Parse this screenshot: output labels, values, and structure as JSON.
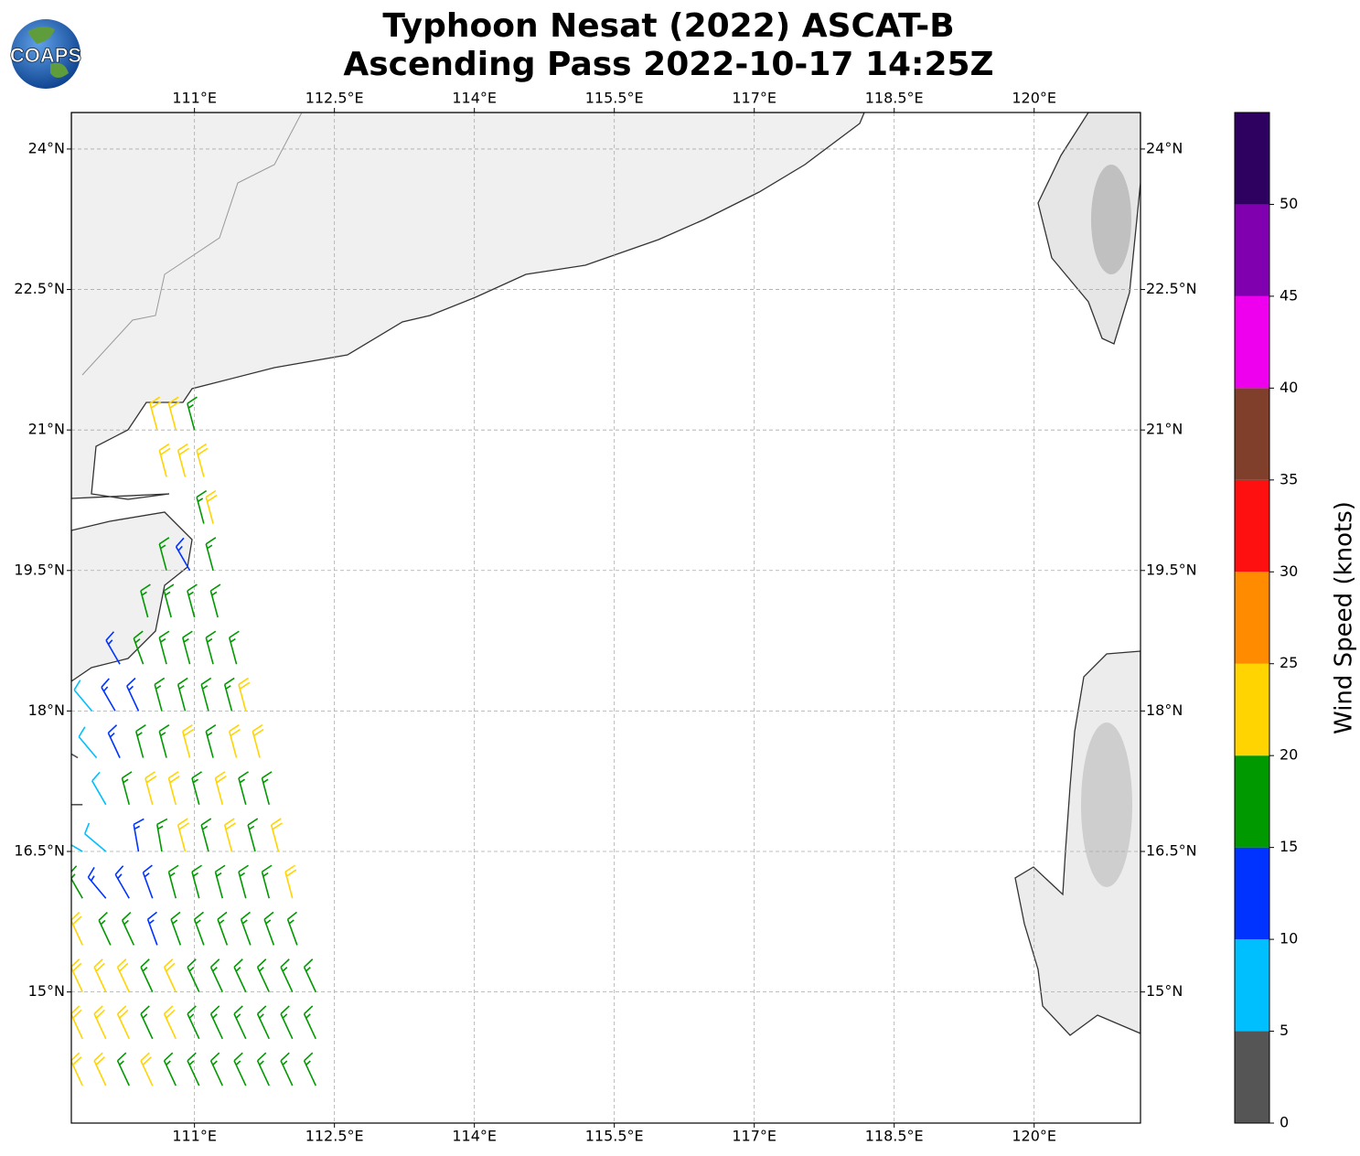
{
  "map": {
    "type": "wind-barbs",
    "logo": "COAPS",
    "title": "Typhoon Nesat (2022) ASCAT-B",
    "subtitle": "Ascending Pass 2022-10-17 14:25Z",
    "xlim": [
      109.68,
      121.14
    ],
    "ylim": [
      13.6,
      24.39
    ],
    "xticks": [
      {
        "value": 111,
        "label": "111°E"
      },
      {
        "value": 112.5,
        "label": "112.5°E"
      },
      {
        "value": 114,
        "label": "114°E"
      },
      {
        "value": 115.5,
        "label": "115.5°E"
      },
      {
        "value": 117,
        "label": "117°E"
      },
      {
        "value": 118.5,
        "label": "118.5°E"
      },
      {
        "value": 120,
        "label": "120°E"
      }
    ],
    "yticks": [
      {
        "value": 15,
        "label": "15°N"
      },
      {
        "value": 16.5,
        "label": "16.5°N"
      },
      {
        "value": 18,
        "label": "18°N"
      },
      {
        "value": 19.5,
        "label": "19.5°N"
      },
      {
        "value": 21,
        "label": "21°N"
      },
      {
        "value": 22.5,
        "label": "22.5°N"
      },
      {
        "value": 24,
        "label": "24°N"
      }
    ],
    "grid": true,
    "colorbar": {
      "label": "Wind Speed (knots)",
      "lim": [
        0,
        55
      ],
      "ticks": [
        0,
        5,
        10,
        15,
        20,
        25,
        30,
        35,
        40,
        45,
        50
      ],
      "colors": [
        "#555555",
        "#00bfff",
        "#0033ff",
        "#009900",
        "#ffd400",
        "#ff8c00",
        "#ff1010",
        "#7f3f2a",
        "#ee00ee",
        "#8000b0",
        "#2e0060"
      ]
    },
    "barbs": [
      [
        110.6,
        21.0,
        22,
        345
      ],
      [
        110.8,
        21.0,
        22,
        345
      ],
      [
        111.0,
        21.0,
        17,
        345
      ],
      [
        110.7,
        20.5,
        22,
        345
      ],
      [
        110.9,
        20.5,
        22,
        345
      ],
      [
        111.1,
        20.5,
        22,
        345
      ],
      [
        111.1,
        20.0,
        17,
        345
      ],
      [
        111.2,
        20.0,
        22,
        345
      ],
      [
        110.7,
        19.5,
        17,
        345
      ],
      [
        110.95,
        19.5,
        13,
        330
      ],
      [
        111.2,
        19.5,
        17,
        345
      ],
      [
        110.5,
        19.0,
        17,
        345
      ],
      [
        110.75,
        19.0,
        17,
        345
      ],
      [
        111.0,
        19.0,
        17,
        345
      ],
      [
        111.25,
        19.0,
        17,
        345
      ],
      [
        110.2,
        18.5,
        13,
        330
      ],
      [
        110.45,
        18.5,
        17,
        340
      ],
      [
        110.7,
        18.5,
        17,
        345
      ],
      [
        110.95,
        18.5,
        17,
        345
      ],
      [
        111.2,
        18.5,
        17,
        345
      ],
      [
        111.45,
        18.5,
        17,
        345
      ],
      [
        109.9,
        18.0,
        8,
        320
      ],
      [
        110.15,
        18.0,
        13,
        330
      ],
      [
        110.4,
        18.0,
        13,
        335
      ],
      [
        110.65,
        18.0,
        17,
        345
      ],
      [
        110.9,
        18.0,
        17,
        345
      ],
      [
        111.15,
        18.0,
        17,
        345
      ],
      [
        111.4,
        18.0,
        17,
        345
      ],
      [
        111.55,
        18.0,
        22,
        345
      ],
      [
        109.75,
        17.5,
        3,
        300
      ],
      [
        109.95,
        17.5,
        8,
        320
      ],
      [
        110.2,
        17.5,
        13,
        335
      ],
      [
        110.45,
        17.5,
        17,
        345
      ],
      [
        110.7,
        17.5,
        17,
        345
      ],
      [
        110.95,
        17.5,
        22,
        345
      ],
      [
        111.2,
        17.5,
        17,
        345
      ],
      [
        111.45,
        17.5,
        22,
        345
      ],
      [
        111.7,
        17.5,
        22,
        345
      ],
      [
        109.8,
        17.0,
        3,
        270
      ],
      [
        110.05,
        17.0,
        8,
        330
      ],
      [
        110.3,
        17.0,
        17,
        345
      ],
      [
        110.55,
        17.0,
        22,
        345
      ],
      [
        110.8,
        17.0,
        22,
        345
      ],
      [
        111.05,
        17.0,
        17,
        345
      ],
      [
        111.3,
        17.0,
        22,
        345
      ],
      [
        111.55,
        17.0,
        17,
        345
      ],
      [
        111.8,
        17.0,
        17,
        345
      ],
      [
        109.8,
        16.5,
        8,
        300
      ],
      [
        110.05,
        16.5,
        8,
        310
      ],
      [
        110.4,
        16.5,
        13,
        350
      ],
      [
        110.65,
        16.5,
        17,
        350
      ],
      [
        110.9,
        16.5,
        22,
        345
      ],
      [
        111.15,
        16.5,
        17,
        345
      ],
      [
        111.4,
        16.5,
        22,
        345
      ],
      [
        111.65,
        16.5,
        17,
        345
      ],
      [
        111.9,
        16.5,
        22,
        345
      ],
      [
        109.8,
        16.0,
        17,
        330
      ],
      [
        110.05,
        16.0,
        13,
        320
      ],
      [
        110.3,
        16.0,
        13,
        330
      ],
      [
        110.55,
        16.0,
        13,
        340
      ],
      [
        110.8,
        16.0,
        17,
        345
      ],
      [
        111.05,
        16.0,
        17,
        345
      ],
      [
        111.3,
        16.0,
        17,
        345
      ],
      [
        111.55,
        16.0,
        17,
        345
      ],
      [
        111.8,
        16.0,
        17,
        345
      ],
      [
        112.05,
        16.0,
        22,
        345
      ],
      [
        109.8,
        15.5,
        22,
        335
      ],
      [
        110.1,
        15.5,
        17,
        335
      ],
      [
        110.35,
        15.5,
        17,
        335
      ],
      [
        110.6,
        15.5,
        13,
        340
      ],
      [
        110.85,
        15.5,
        17,
        340
      ],
      [
        111.1,
        15.5,
        17,
        340
      ],
      [
        111.35,
        15.5,
        17,
        340
      ],
      [
        111.6,
        15.5,
        17,
        340
      ],
      [
        111.85,
        15.5,
        17,
        340
      ],
      [
        112.1,
        15.5,
        17,
        340
      ],
      [
        109.8,
        15.0,
        22,
        335
      ],
      [
        110.05,
        15.0,
        22,
        335
      ],
      [
        110.3,
        15.0,
        22,
        335
      ],
      [
        110.55,
        15.0,
        17,
        335
      ],
      [
        110.8,
        15.0,
        22,
        335
      ],
      [
        111.05,
        15.0,
        17,
        335
      ],
      [
        111.3,
        15.0,
        17,
        335
      ],
      [
        111.55,
        15.0,
        17,
        335
      ],
      [
        111.8,
        15.0,
        17,
        335
      ],
      [
        112.05,
        15.0,
        17,
        335
      ],
      [
        112.3,
        15.0,
        17,
        335
      ],
      [
        109.8,
        14.5,
        22,
        335
      ],
      [
        110.05,
        14.5,
        22,
        335
      ],
      [
        110.3,
        14.5,
        22,
        335
      ],
      [
        110.55,
        14.5,
        17,
        335
      ],
      [
        110.8,
        14.5,
        22,
        335
      ],
      [
        111.05,
        14.5,
        17,
        335
      ],
      [
        111.3,
        14.5,
        17,
        335
      ],
      [
        111.55,
        14.5,
        17,
        335
      ],
      [
        111.8,
        14.5,
        17,
        335
      ],
      [
        112.05,
        14.5,
        17,
        335
      ],
      [
        112.3,
        14.5,
        17,
        335
      ],
      [
        109.8,
        14.0,
        22,
        335
      ],
      [
        110.05,
        14.0,
        22,
        335
      ],
      [
        110.3,
        14.0,
        17,
        335
      ],
      [
        110.55,
        14.0,
        22,
        335
      ],
      [
        110.8,
        14.0,
        17,
        335
      ],
      [
        111.05,
        14.0,
        17,
        335
      ],
      [
        111.3,
        14.0,
        17,
        335
      ],
      [
        111.55,
        14.0,
        17,
        335
      ],
      [
        111.8,
        14.0,
        17,
        335
      ],
      [
        112.05,
        14.0,
        17,
        335
      ],
      [
        112.3,
        14.0,
        17,
        335
      ]
    ]
  }
}
